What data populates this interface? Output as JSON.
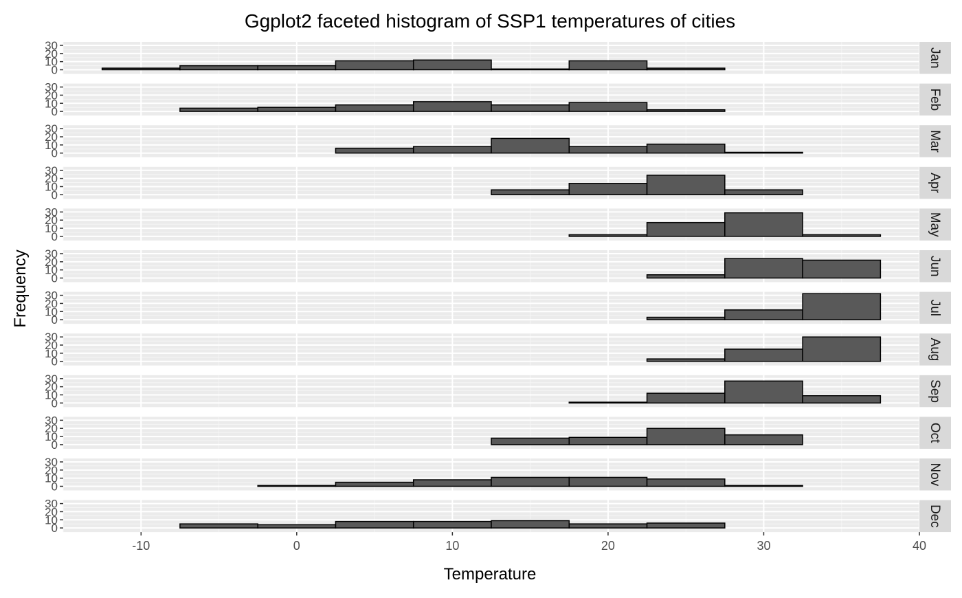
{
  "chart_data": {
    "type": "bar",
    "subtype": "faceted-histogram",
    "title": "Ggplot2 faceted histogram of SSP1 temperatures of cities",
    "xlabel": "Temperature",
    "ylabel": "Frequency",
    "xlim": [
      -15,
      40
    ],
    "ylim": [
      0,
      30
    ],
    "xticks": [
      -10,
      0,
      10,
      20,
      30,
      40
    ],
    "yticks": [
      0,
      10,
      20,
      30
    ],
    "grid": true,
    "bin_width": 5,
    "bin_centers": [
      -10,
      -5,
      0,
      5,
      10,
      15,
      20,
      25,
      30,
      35
    ],
    "colors": {
      "bar_fill": "#595959",
      "bar_outline": "#000000",
      "panel_bg": "#ebebeb",
      "strip_bg": "#d9d9d9",
      "grid": "#ffffff"
    },
    "facets": [
      {
        "label": "Jan",
        "values": [
          2,
          5,
          5,
          11,
          12,
          1,
          11,
          2,
          0,
          0
        ]
      },
      {
        "label": "Feb",
        "values": [
          0,
          4,
          5,
          8,
          12,
          8,
          11,
          2,
          0,
          0
        ]
      },
      {
        "label": "Mar",
        "values": [
          0,
          0,
          0,
          6,
          8,
          18,
          8,
          11,
          1,
          0
        ]
      },
      {
        "label": "Apr",
        "values": [
          0,
          0,
          0,
          0,
          0,
          6,
          14,
          24,
          6,
          0
        ]
      },
      {
        "label": "May",
        "values": [
          0,
          0,
          0,
          0,
          0,
          0,
          2,
          17,
          29,
          2
        ]
      },
      {
        "label": "Jun",
        "values": [
          0,
          0,
          0,
          0,
          0,
          0,
          0,
          4,
          24,
          22
        ]
      },
      {
        "label": "Jul",
        "values": [
          0,
          0,
          0,
          0,
          0,
          0,
          0,
          3,
          12,
          32
        ]
      },
      {
        "label": "Aug",
        "values": [
          0,
          0,
          0,
          0,
          0,
          0,
          0,
          3,
          15,
          30
        ]
      },
      {
        "label": "Sep",
        "values": [
          0,
          0,
          0,
          0,
          0,
          0,
          1,
          12,
          27,
          9
        ]
      },
      {
        "label": "Oct",
        "values": [
          0,
          0,
          0,
          0,
          0,
          8,
          9,
          20,
          12,
          0
        ]
      },
      {
        "label": "Nov",
        "values": [
          0,
          0,
          1,
          5,
          8,
          11,
          11,
          9,
          1,
          0
        ]
      },
      {
        "label": "Dec",
        "values": [
          0,
          5,
          4,
          8,
          8,
          9,
          5,
          6,
          0,
          0
        ]
      }
    ]
  }
}
